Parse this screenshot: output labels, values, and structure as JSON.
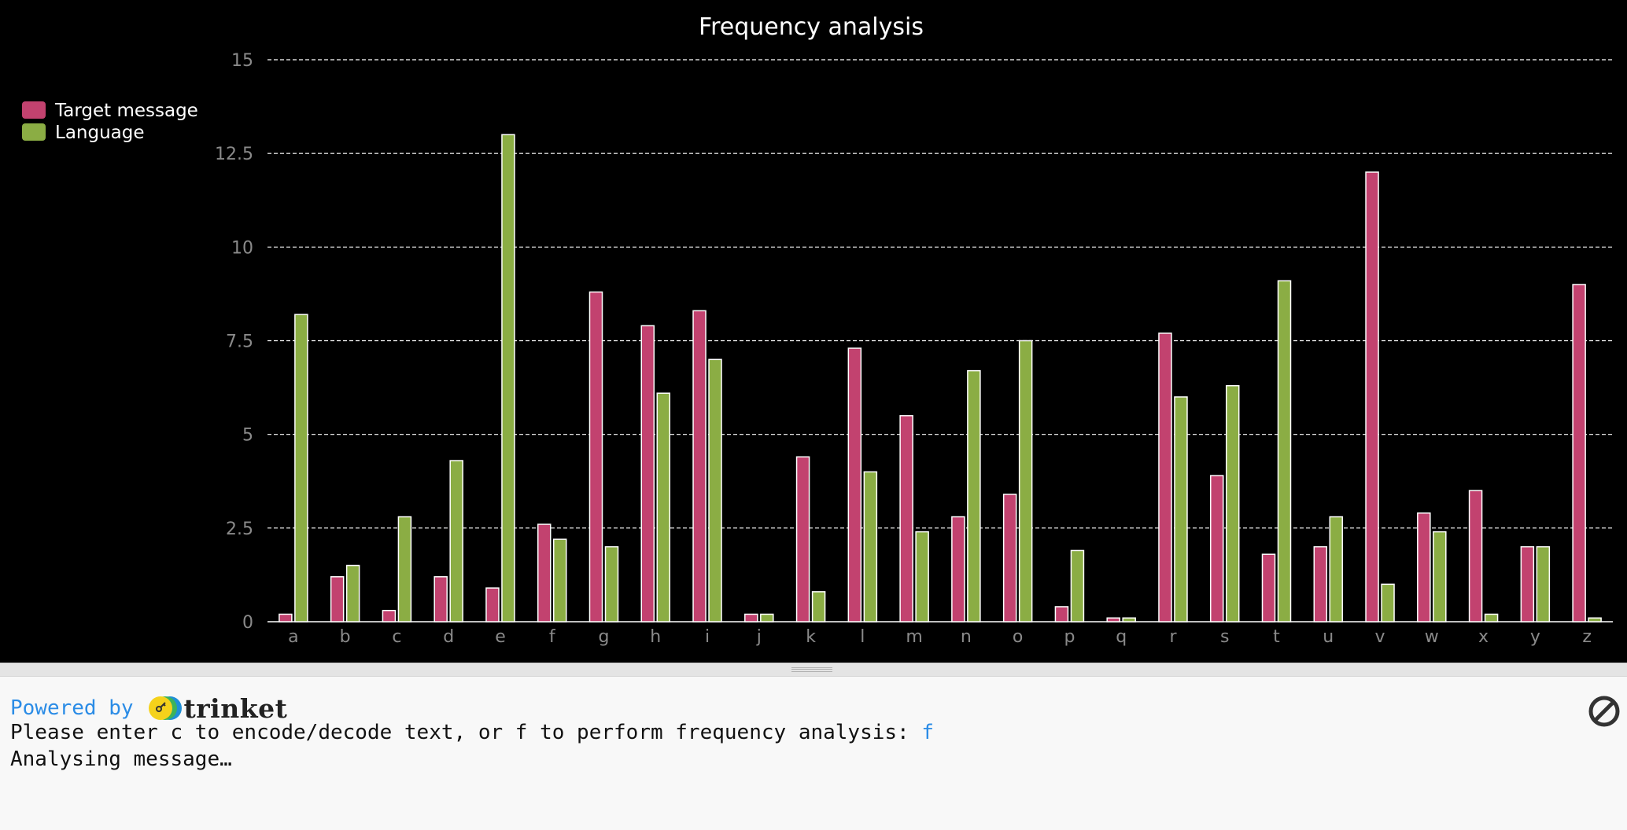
{
  "chart_data": {
    "type": "bar",
    "title": "Frequency analysis",
    "xlabel": "",
    "ylabel": "",
    "ylim": [
      0,
      15
    ],
    "yticks": [
      {
        "value": 0,
        "label": "0"
      },
      {
        "value": 2.5,
        "label": "2.5"
      },
      {
        "value": 5,
        "label": "5"
      },
      {
        "value": 7.5,
        "label": "7.5"
      },
      {
        "value": 10,
        "label": "10"
      },
      {
        "value": 12.5,
        "label": "12.5"
      },
      {
        "value": 15,
        "label": "15"
      }
    ],
    "grid": true,
    "legend_position": "top-left",
    "categories": [
      "a",
      "b",
      "c",
      "d",
      "e",
      "f",
      "g",
      "h",
      "i",
      "j",
      "k",
      "l",
      "m",
      "n",
      "o",
      "p",
      "q",
      "r",
      "s",
      "t",
      "u",
      "v",
      "w",
      "x",
      "y",
      "z"
    ],
    "series": [
      {
        "name": "Target message",
        "color": "#c2426f",
        "values": [
          0.2,
          1.2,
          0.3,
          1.2,
          0.9,
          2.6,
          8.8,
          7.9,
          8.3,
          0.2,
          4.4,
          7.3,
          5.5,
          2.8,
          3.4,
          0.4,
          0.1,
          7.7,
          3.9,
          1.8,
          2.0,
          12.0,
          2.9,
          3.5,
          2.0,
          9.0
        ]
      },
      {
        "name": "Language",
        "color": "#8bad44",
        "values": [
          8.2,
          1.5,
          2.8,
          4.3,
          13.0,
          2.2,
          2.0,
          6.1,
          7.0,
          0.2,
          0.8,
          4.0,
          2.4,
          6.7,
          7.5,
          1.9,
          0.1,
          6.0,
          6.3,
          9.1,
          2.8,
          1.0,
          2.4,
          0.2,
          2.0,
          0.1
        ]
      }
    ]
  },
  "console": {
    "powered_by": "Powered by",
    "brand": "trinket",
    "prompt": "Please enter c to encode/decode text, or f to perform frequency analysis: ",
    "user_input": "f",
    "status": "Analysing message…",
    "stop_icon": "stop-icon"
  }
}
